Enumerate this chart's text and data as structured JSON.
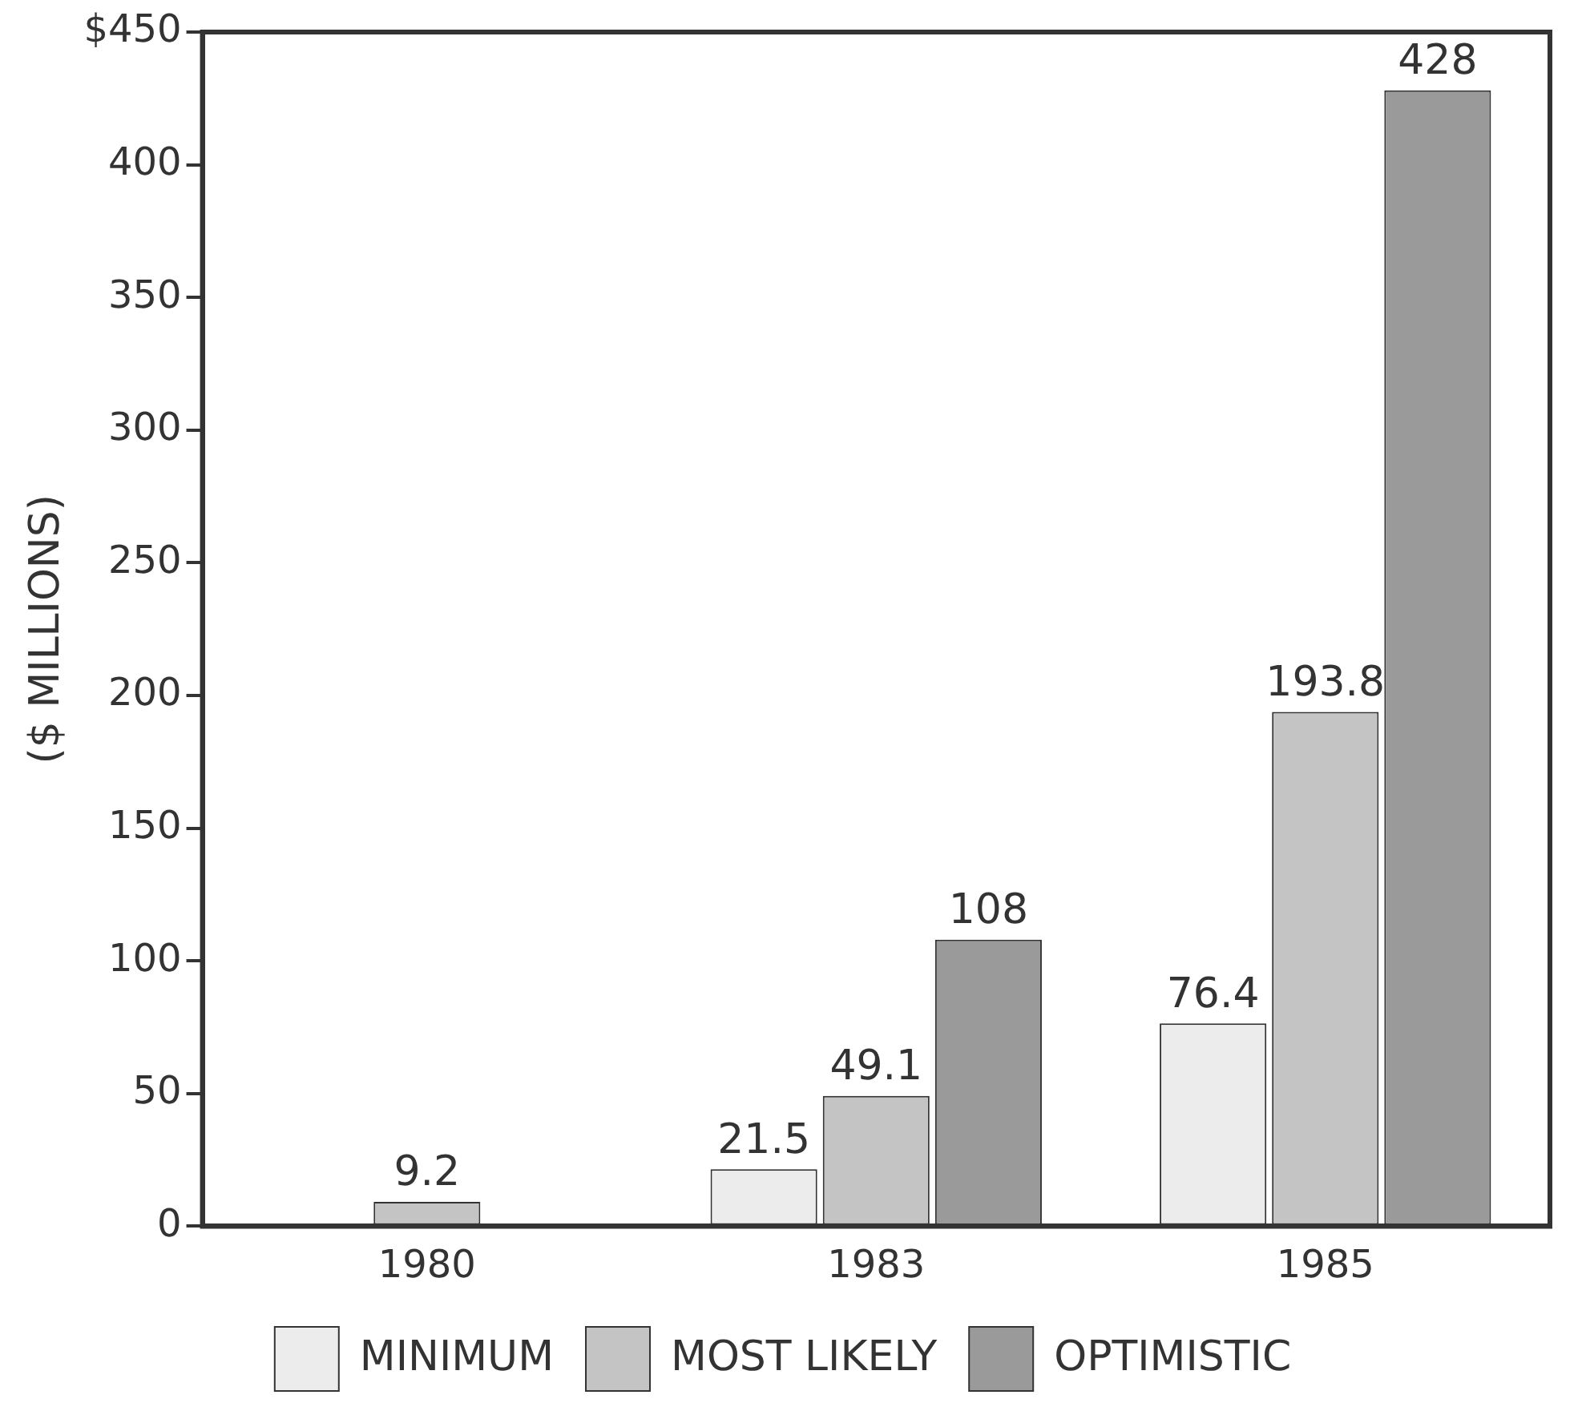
{
  "chart_data": {
    "type": "bar",
    "ylabel": "($ MILLIONS)",
    "categories": [
      "1980",
      "1983",
      "1985"
    ],
    "series": [
      {
        "name": "MINIMUM",
        "color": "#ececec",
        "values": [
          null,
          21.5,
          76.4
        ]
      },
      {
        "name": "MOST LIKELY",
        "color": "#c4c4c4",
        "values": [
          9.2,
          49.1,
          193.8
        ]
      },
      {
        "name": "OPTIMISTIC",
        "color": "#9a9a9a",
        "values": [
          null,
          108,
          428
        ]
      }
    ],
    "ylim": [
      0,
      450
    ],
    "yticks": [
      0,
      50,
      100,
      150,
      200,
      250,
      300,
      350,
      400,
      {
        "value": 450,
        "label": "$450"
      }
    ],
    "grid": false,
    "legend": "bottom",
    "data_labels": true
  }
}
